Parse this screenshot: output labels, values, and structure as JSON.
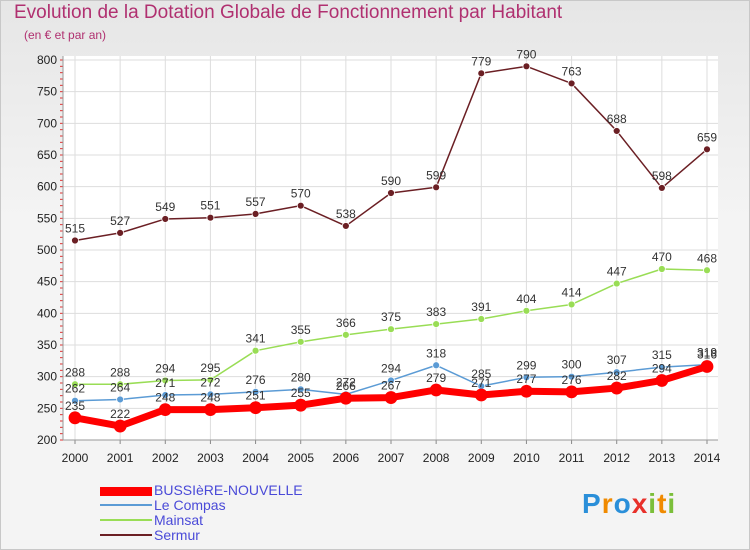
{
  "chart_data": {
    "type": "line",
    "title": "Evolution de la Dotation Globale de Fonctionnement par Habitant",
    "subtitle": "(en € et par an)",
    "xlabel": "",
    "ylabel": "",
    "x": [
      "2000",
      "2001",
      "2002",
      "2003",
      "2004",
      "2005",
      "2006",
      "2007",
      "2008",
      "2009",
      "2010",
      "2011",
      "2012",
      "2013",
      "2014"
    ],
    "ylim": [
      200,
      800
    ],
    "yticks": [
      "200",
      "250",
      "300",
      "350",
      "400",
      "450",
      "500",
      "550",
      "600",
      "650",
      "700",
      "750",
      "800"
    ],
    "grid": true,
    "legend_position": "bottom-left",
    "series": [
      {
        "name": "Sermur",
        "color": "#6b1f24",
        "values": [
          515,
          527,
          549,
          551,
          557,
          570,
          538,
          590,
          599,
          779,
          790,
          763,
          688,
          598,
          659
        ]
      },
      {
        "name": "Mainsat",
        "color": "#99dd55",
        "values": [
          288,
          288,
          294,
          295,
          341,
          355,
          366,
          375,
          383,
          391,
          404,
          414,
          447,
          470,
          468
        ]
      },
      {
        "name": "Le Compas",
        "color": "#5b9bd5",
        "values": [
          262,
          264,
          271,
          272,
          276,
          280,
          272,
          294,
          318,
          285,
          299,
          300,
          307,
          315,
          319
        ]
      },
      {
        "name": "BUSSIèRE-NOUVELLE",
        "color": "#ff0000",
        "values": [
          235,
          222,
          248,
          248,
          251,
          255,
          266,
          267,
          279,
          271,
          277,
          276,
          282,
          294,
          316
        ]
      }
    ]
  },
  "legend": {
    "items": [
      {
        "label": "BUSSIèRE-NOUVELLE",
        "color": "#ff0000"
      },
      {
        "label": "Le Compas",
        "color": "#5b9bd5"
      },
      {
        "label": "Mainsat",
        "color": "#99dd55"
      },
      {
        "label": "Sermur",
        "color": "#6b1f24"
      }
    ]
  },
  "brand": {
    "letters": [
      "P",
      "r",
      "o",
      "x",
      "i",
      "t",
      "i"
    ],
    "colors": [
      "#2a8fd9",
      "#f08a00",
      "#2a8fd9",
      "#e8302a",
      "#7bbf3a",
      "#f08a00",
      "#7bbf3a"
    ],
    "text": "Proxiti"
  }
}
